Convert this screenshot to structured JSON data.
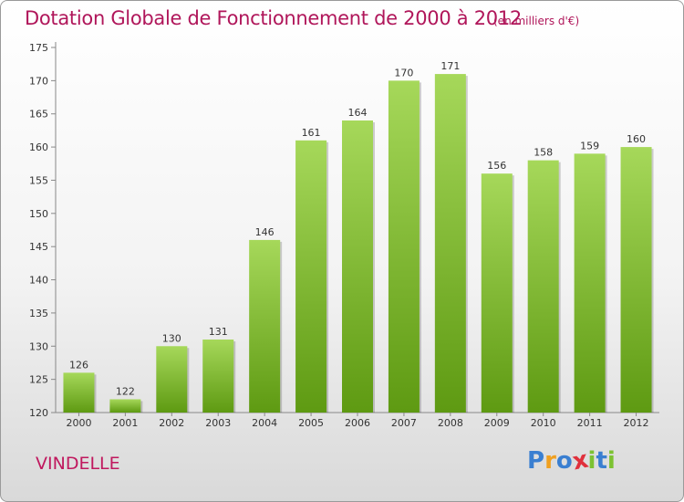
{
  "header": {
    "title": "Dotation Globale de Fonctionnement de 2000 à 2012",
    "subtitle": "(en milliers d'€)"
  },
  "footer": {
    "commune": "VINDELLE",
    "logo_letters": [
      "P",
      "r",
      "o",
      "x",
      "i",
      "t",
      "i"
    ]
  },
  "colors": {
    "title": "#b0165a",
    "bar_top": "#a6d85a",
    "bar_bottom": "#5e9a12",
    "logo": [
      "#3a7fd1",
      "#f0a020",
      "#3a7fd1",
      "#e0303c",
      "#7cc232",
      "#3a7fd1",
      "#7cc232"
    ]
  },
  "chart_data": {
    "type": "bar",
    "title": "Dotation Globale de Fonctionnement de 2000 à 2012",
    "subtitle": "(en milliers d'€)",
    "categories": [
      "2000",
      "2001",
      "2002",
      "2003",
      "2004",
      "2005",
      "2006",
      "2007",
      "2008",
      "2009",
      "2010",
      "2011",
      "2012"
    ],
    "values": [
      126,
      122,
      130,
      131,
      146,
      161,
      164,
      170,
      171,
      156,
      158,
      159,
      160
    ],
    "ylim": [
      120,
      175
    ],
    "yticks": [
      120,
      125,
      130,
      135,
      140,
      145,
      150,
      155,
      160,
      165,
      170,
      175
    ],
    "grid": false,
    "legend": "none"
  }
}
